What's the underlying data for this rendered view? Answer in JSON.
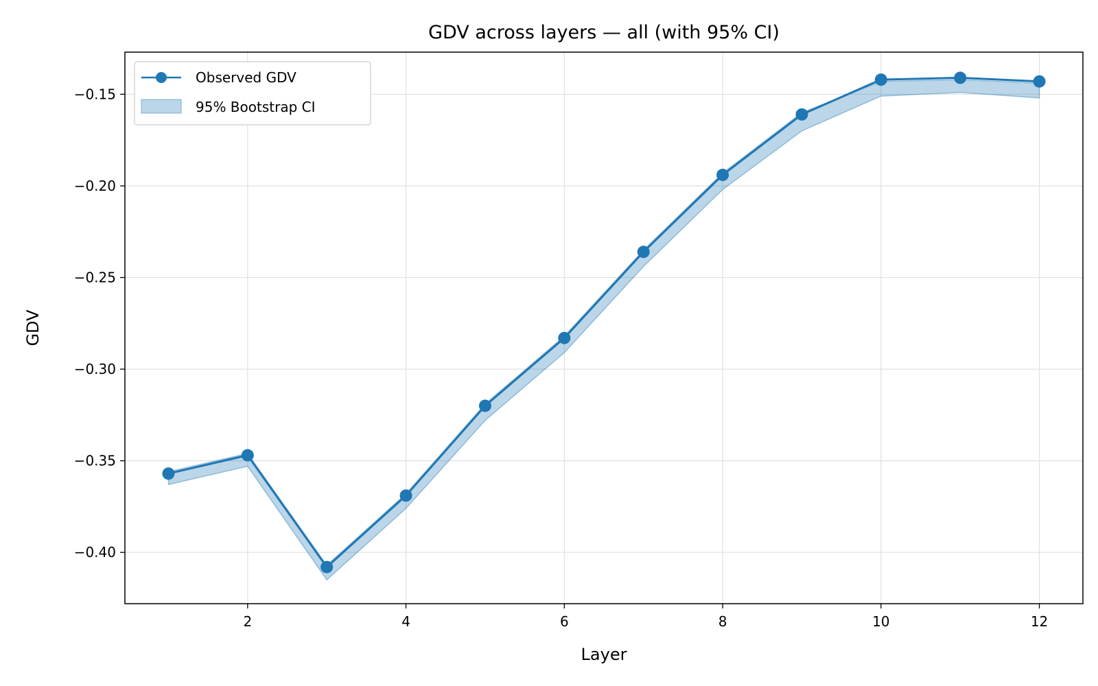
{
  "chart_data": {
    "type": "line",
    "title": "GDV across layers — all (with 95% CI)",
    "xlabel": "Layer",
    "ylabel": "GDV",
    "xlim": [
      0.45,
      12.55
    ],
    "ylim": [
      -0.428,
      -0.127
    ],
    "x_ticks": [
      2,
      4,
      6,
      8,
      10,
      12
    ],
    "x_tick_labels": [
      "2",
      "4",
      "6",
      "8",
      "10",
      "12"
    ],
    "y_ticks": [
      -0.15,
      -0.2,
      -0.25,
      -0.3,
      -0.35,
      -0.4
    ],
    "y_tick_labels": [
      "−0.15",
      "−0.20",
      "−0.25",
      "−0.30",
      "−0.35",
      "−0.40"
    ],
    "grid": true,
    "legend_position": "upper-left",
    "x": [
      1,
      2,
      3,
      4,
      5,
      6,
      7,
      8,
      9,
      10,
      11,
      12
    ],
    "series": [
      {
        "name": "Observed GDV",
        "kind": "line-marker",
        "color": "#1f77b4",
        "values": [
          -0.357,
          -0.347,
          -0.408,
          -0.369,
          -0.32,
          -0.283,
          -0.236,
          -0.194,
          -0.161,
          -0.142,
          -0.141,
          -0.143
        ]
      },
      {
        "name": "95% Bootstrap CI",
        "kind": "band",
        "color": "#1f77b4",
        "lower": [
          -0.363,
          -0.353,
          -0.415,
          -0.376,
          -0.328,
          -0.291,
          -0.244,
          -0.202,
          -0.17,
          -0.151,
          -0.149,
          -0.152
        ],
        "upper": [
          -0.356,
          -0.346,
          -0.407,
          -0.368,
          -0.319,
          -0.282,
          -0.235,
          -0.193,
          -0.16,
          -0.143,
          -0.142,
          -0.144
        ]
      }
    ]
  }
}
